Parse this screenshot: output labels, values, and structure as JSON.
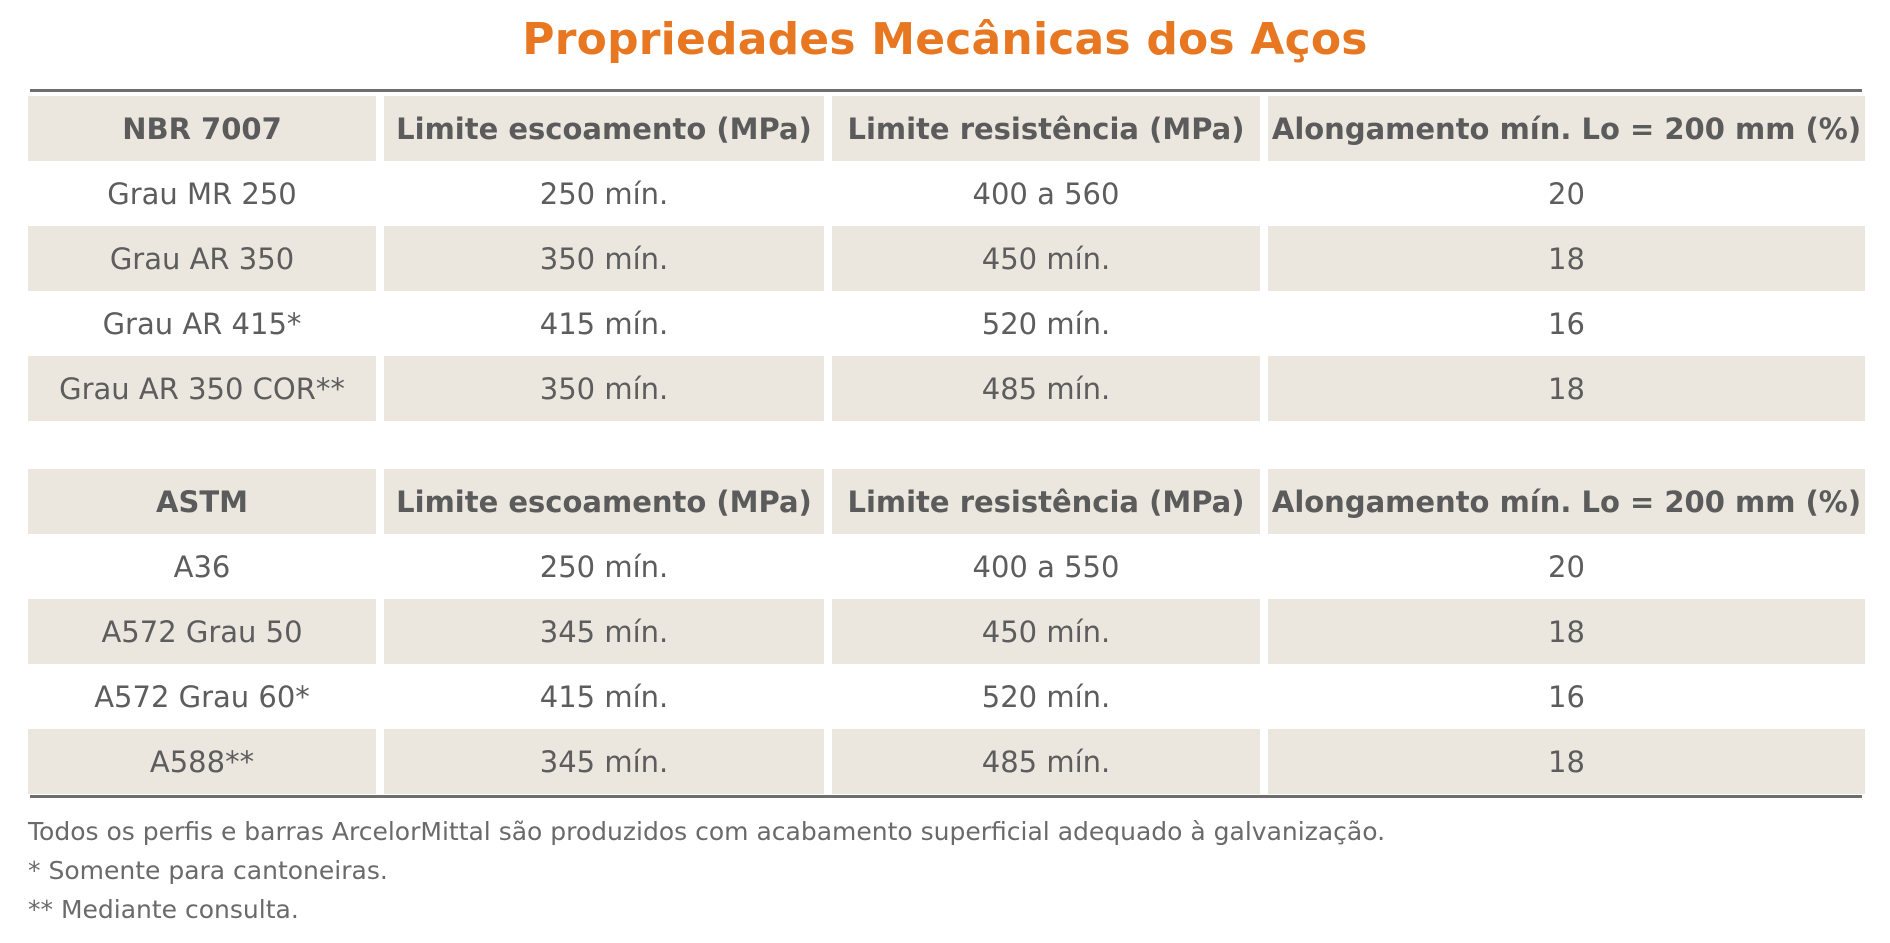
{
  "title": "Propriedades Mecânicas dos Aços",
  "tables": [
    {
      "headers": [
        "NBR 7007",
        "Limite escoamento (MPa)",
        "Limite resistência (MPa)",
        "Alongamento mín. Lo = 200 mm (%)"
      ],
      "rows": [
        [
          "Grau MR 250",
          "250 mín.",
          "400 a 560",
          "20"
        ],
        [
          "Grau AR 350",
          "350 mín.",
          "450 mín.",
          "18"
        ],
        [
          "Grau AR 415*",
          "415 mín.",
          "520 mín.",
          "16"
        ],
        [
          "Grau AR 350 COR**",
          "350 mín.",
          "485 mín.",
          "18"
        ]
      ]
    },
    {
      "headers": [
        "ASTM",
        "Limite escoamento (MPa)",
        "Limite resistência (MPa)",
        "Alongamento mín. Lo = 200 mm (%)"
      ],
      "rows": [
        [
          "A36",
          "250 mín.",
          "400 a 550",
          "20"
        ],
        [
          "A572 Grau 50",
          "345 mín.",
          "450 mín.",
          "18"
        ],
        [
          "A572 Grau 60*",
          "415 mín.",
          "520 mín.",
          "16"
        ],
        [
          "A588**",
          "345 mín.",
          "485 mín.",
          "18"
        ]
      ]
    }
  ],
  "notes": [
    "Todos os perfis e barras ArcelorMittal são produzidos com acabamento superficial adequado à galvanização.",
    "* Somente para cantoneiras.",
    "** Mediante consulta."
  ],
  "colors": {
    "title": "#e87722",
    "row_shade": "#ebe7df",
    "rule": "#6e6e6e",
    "text": "#5d5d5d"
  }
}
